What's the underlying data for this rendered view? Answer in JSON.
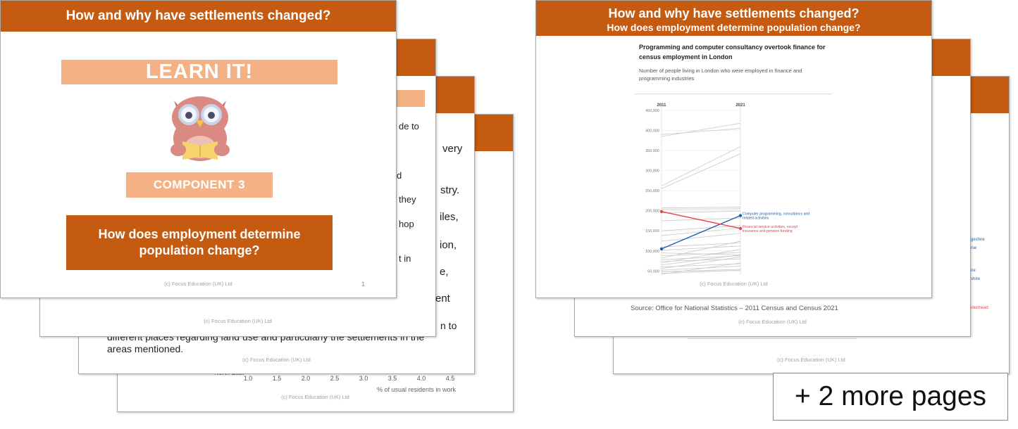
{
  "left_deck": {
    "front": {
      "header": "How and why have settlements changed?",
      "learn_it": "LEARN IT!",
      "component": "COMPONENT 3",
      "question": "How does employment determine population change?",
      "copyright": "(c) Focus Education (UK) Ltd",
      "page_number": "1"
    },
    "behind": {
      "copyright": "(c) Focus Education (UK) Ltd",
      "text_fragments": [
        "de to",
        "very",
        "d",
        "stry.",
        "they",
        "iles,",
        "hop",
        "ion,",
        "t in",
        "e,",
        "ent"
      ],
      "paragraph_end_line1": "different places regarding land use and particularly the settlements in the",
      "paragraph_end_suffix": "n to",
      "paragraph_end_line2": "areas mentioned.",
      "chart_fragment": {
        "category_label": "North East",
        "x_ticks": [
          "1.0",
          "1.5",
          "2.0",
          "2.5",
          "3.0",
          "3.5",
          "4.0",
          "4.5"
        ],
        "x_label": "% of usual residents in work"
      }
    }
  },
  "right_deck": {
    "front": {
      "header_line1": "How and why have settlements changed?",
      "header_line2": "How does employment determine population change?",
      "chart_title": "Programming and computer consultancy overtook finance for census employment in London",
      "chart_subtitle": "Number of people living in London who were employed in finance and programming industries",
      "copyright": "(c) Focus Education (UK) Ltd"
    },
    "behind": {
      "source": "Source: Office for National Statistics – 2011 Census and Census 2021",
      "copyright": "(c) Focus Education (UK) Ltd",
      "label_fragments": [
        "geshire",
        "rse",
        "ire",
        "shire",
        "idenhead"
      ]
    },
    "more_pages": "+ 2 more pages"
  },
  "chart_data": {
    "type": "line",
    "x": [
      "2011",
      "2021"
    ],
    "ylim": [
      40000,
      450000
    ],
    "y_ticks": [
      {
        "value": 450000,
        "label": "450,000"
      },
      {
        "value": 400000,
        "label": "400,000"
      },
      {
        "value": 350000,
        "label": "350,000"
      },
      {
        "value": 300000,
        "label": "300,000"
      },
      {
        "value": 250000,
        "label": "250,000"
      },
      {
        "value": 200000,
        "label": "200,000"
      },
      {
        "value": 150000,
        "label": "150,000"
      },
      {
        "value": 100000,
        "label": "100,000"
      },
      {
        "value": 50000,
        "label": "50,000"
      }
    ],
    "highlight_series": [
      {
        "name": "Computer programming, consultancy and related activities",
        "values": [
          105000,
          188000
        ],
        "color": "#1f5fa8"
      },
      {
        "name": "Financial service activities, except insurance and pension funding",
        "values": [
          198000,
          156000
        ],
        "color": "#e8424f"
      }
    ],
    "background_series": [
      [
        385000,
        418000
      ],
      [
        390000,
        405000
      ],
      [
        262000,
        360000
      ],
      [
        255000,
        342000
      ],
      [
        207000,
        209000
      ],
      [
        204000,
        205000
      ],
      [
        195000,
        199000
      ],
      [
        175000,
        182000
      ],
      [
        150000,
        163000
      ],
      [
        138000,
        157000
      ],
      [
        124000,
        144000
      ],
      [
        110000,
        120000
      ],
      [
        102000,
        112000
      ],
      [
        95000,
        90000
      ],
      [
        88000,
        96000
      ],
      [
        82000,
        124000
      ],
      [
        78000,
        88000
      ],
      [
        74000,
        80000
      ],
      [
        70000,
        104000
      ],
      [
        65000,
        90000
      ],
      [
        60000,
        68000
      ],
      [
        56000,
        85000
      ],
      [
        52000,
        62000
      ],
      [
        48000,
        54000
      ],
      [
        44000,
        52000
      ],
      [
        42000,
        70000
      ]
    ],
    "grid": true
  }
}
